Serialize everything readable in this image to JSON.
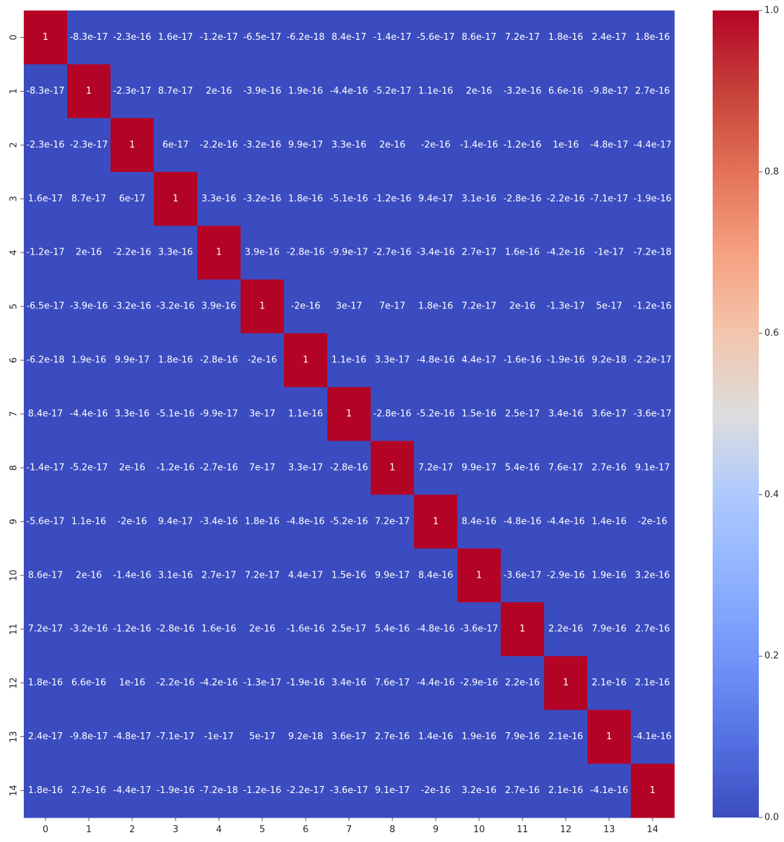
{
  "chart_data": {
    "type": "heatmap",
    "title": "",
    "xlabel": "",
    "ylabel": "",
    "x_categories": [
      "0",
      "1",
      "2",
      "3",
      "4",
      "5",
      "6",
      "7",
      "8",
      "9",
      "10",
      "11",
      "12",
      "13",
      "14"
    ],
    "y_categories": [
      "0",
      "1",
      "2",
      "3",
      "4",
      "5",
      "6",
      "7",
      "8",
      "9",
      "10",
      "11",
      "12",
      "13",
      "14"
    ],
    "colormap": "coolwarm",
    "vmin": 0.0,
    "vmax": 1.0,
    "colorbar_ticks": [
      "0.0",
      "0.2",
      "0.4",
      "0.6",
      "0.8",
      "1.0"
    ],
    "cell_labels": [
      [
        "1",
        "-8.3e-17",
        "-2.3e-16",
        "1.6e-17",
        "-1.2e-17",
        "-6.5e-17",
        "-6.2e-18",
        "8.4e-17",
        "-1.4e-17",
        "-5.6e-17",
        "8.6e-17",
        "7.2e-17",
        "1.8e-16",
        "2.4e-17",
        "1.8e-16"
      ],
      [
        "-8.3e-17",
        "1",
        "-2.3e-17",
        "8.7e-17",
        "2e-16",
        "-3.9e-16",
        "1.9e-16",
        "-4.4e-16",
        "-5.2e-17",
        "1.1e-16",
        "2e-16",
        "-3.2e-16",
        "6.6e-16",
        "-9.8e-17",
        "2.7e-16"
      ],
      [
        "-2.3e-16",
        "-2.3e-17",
        "1",
        "6e-17",
        "-2.2e-16",
        "-3.2e-16",
        "9.9e-17",
        "3.3e-16",
        "2e-16",
        "-2e-16",
        "-1.4e-16",
        "-1.2e-16",
        "1e-16",
        "-4.8e-17",
        "-4.4e-17"
      ],
      [
        "1.6e-17",
        "8.7e-17",
        "6e-17",
        "1",
        "3.3e-16",
        "-3.2e-16",
        "1.8e-16",
        "-5.1e-16",
        "-1.2e-16",
        "9.4e-17",
        "3.1e-16",
        "-2.8e-16",
        "-2.2e-16",
        "-7.1e-17",
        "-1.9e-16"
      ],
      [
        "-1.2e-17",
        "2e-16",
        "-2.2e-16",
        "3.3e-16",
        "1",
        "3.9e-16",
        "-2.8e-16",
        "-9.9e-17",
        "-2.7e-16",
        "-3.4e-16",
        "2.7e-17",
        "1.6e-16",
        "-4.2e-16",
        "-1e-17",
        "-7.2e-18"
      ],
      [
        "-6.5e-17",
        "-3.9e-16",
        "-3.2e-16",
        "-3.2e-16",
        "3.9e-16",
        "1",
        "-2e-16",
        "3e-17",
        "7e-17",
        "1.8e-16",
        "7.2e-17",
        "2e-16",
        "-1.3e-17",
        "5e-17",
        "-1.2e-16"
      ],
      [
        "-6.2e-18",
        "1.9e-16",
        "9.9e-17",
        "1.8e-16",
        "-2.8e-16",
        "-2e-16",
        "1",
        "1.1e-16",
        "3.3e-17",
        "-4.8e-16",
        "4.4e-17",
        "-1.6e-16",
        "-1.9e-16",
        "9.2e-18",
        "-2.2e-17"
      ],
      [
        "8.4e-17",
        "-4.4e-16",
        "3.3e-16",
        "-5.1e-16",
        "-9.9e-17",
        "3e-17",
        "1.1e-16",
        "1",
        "-2.8e-16",
        "-5.2e-16",
        "1.5e-16",
        "2.5e-17",
        "3.4e-16",
        "3.6e-17",
        "-3.6e-17"
      ],
      [
        "-1.4e-17",
        "-5.2e-17",
        "2e-16",
        "-1.2e-16",
        "-2.7e-16",
        "7e-17",
        "3.3e-17",
        "-2.8e-16",
        "1",
        "7.2e-17",
        "9.9e-17",
        "5.4e-16",
        "7.6e-17",
        "2.7e-16",
        "9.1e-17"
      ],
      [
        "-5.6e-17",
        "1.1e-16",
        "-2e-16",
        "9.4e-17",
        "-3.4e-16",
        "1.8e-16",
        "-4.8e-16",
        "-5.2e-16",
        "7.2e-17",
        "1",
        "8.4e-16",
        "-4.8e-16",
        "-4.4e-16",
        "1.4e-16",
        "-2e-16"
      ],
      [
        "8.6e-17",
        "2e-16",
        "-1.4e-16",
        "3.1e-16",
        "2.7e-17",
        "7.2e-17",
        "4.4e-17",
        "1.5e-16",
        "9.9e-17",
        "8.4e-16",
        "1",
        "-3.6e-17",
        "-2.9e-16",
        "1.9e-16",
        "3.2e-16"
      ],
      [
        "7.2e-17",
        "-3.2e-16",
        "-1.2e-16",
        "-2.8e-16",
        "1.6e-16",
        "2e-16",
        "-1.6e-16",
        "2.5e-17",
        "5.4e-16",
        "-4.8e-16",
        "-3.6e-17",
        "1",
        "2.2e-16",
        "7.9e-16",
        "2.7e-16"
      ],
      [
        "1.8e-16",
        "6.6e-16",
        "1e-16",
        "-2.2e-16",
        "-4.2e-16",
        "-1.3e-17",
        "-1.9e-16",
        "3.4e-16",
        "7.6e-17",
        "-4.4e-16",
        "-2.9e-16",
        "2.2e-16",
        "1",
        "2.1e-16",
        "2.1e-16"
      ],
      [
        "2.4e-17",
        "-9.8e-17",
        "-4.8e-17",
        "-7.1e-17",
        "-1e-17",
        "5e-17",
        "9.2e-18",
        "3.6e-17",
        "2.7e-16",
        "1.4e-16",
        "1.9e-16",
        "7.9e-16",
        "2.1e-16",
        "1",
        "-4.1e-16"
      ],
      [
        "1.8e-16",
        "2.7e-16",
        "-4.4e-17",
        "-1.9e-16",
        "-7.2e-18",
        "-1.2e-16",
        "-2.2e-17",
        "-3.6e-17",
        "9.1e-17",
        "-2e-16",
        "3.2e-16",
        "2.7e-16",
        "2.1e-16",
        "-4.1e-16",
        "1"
      ]
    ]
  }
}
